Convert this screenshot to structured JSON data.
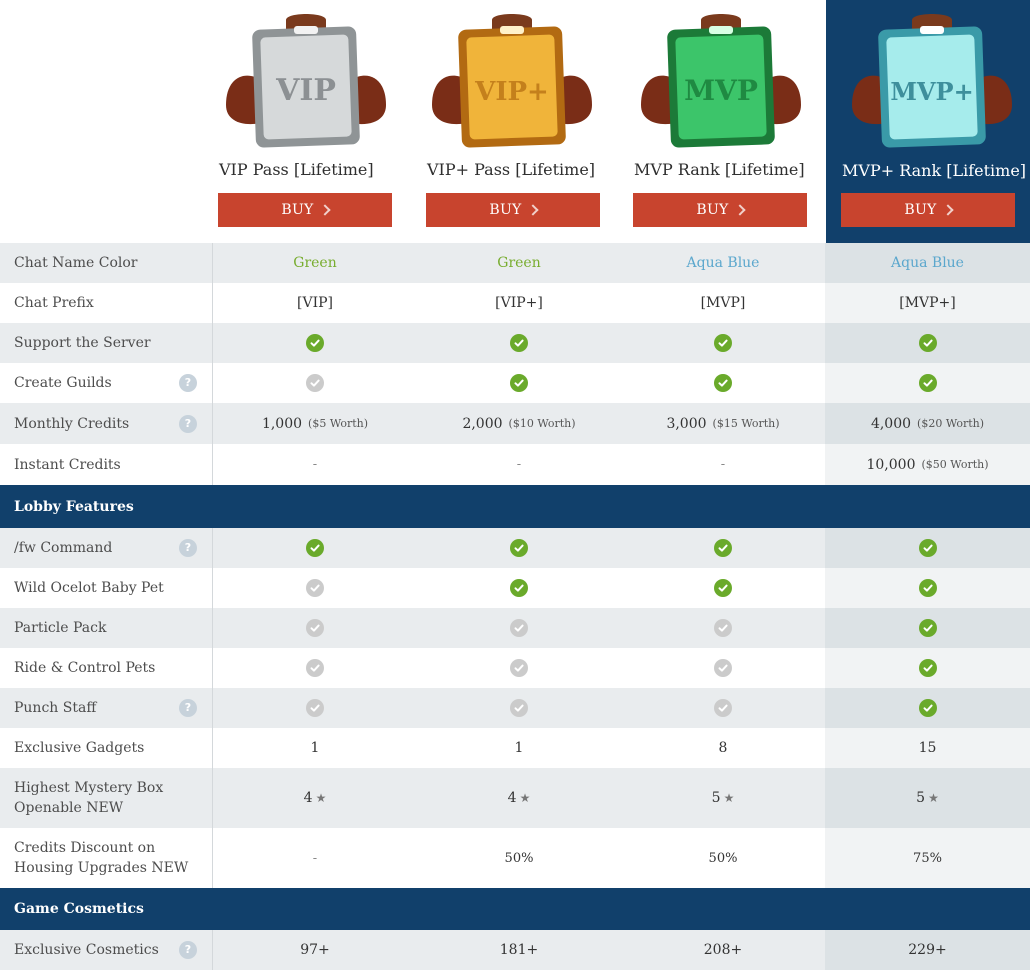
{
  "passes": [
    {
      "name": "VIP Pass [Lifetime]",
      "badge_text": "VIP",
      "buy": "BUY"
    },
    {
      "name": "VIP+ Pass [Lifetime]",
      "badge_text": "VIP+",
      "buy": "BUY"
    },
    {
      "name": "MVP Rank [Lifetime]",
      "badge_text": "MVP",
      "buy": "BUY"
    },
    {
      "name": "MVP+ Rank [Lifetime]",
      "badge_text": "MVP+",
      "buy": "BUY"
    }
  ],
  "colors": {
    "navy": "#11406b",
    "buy_red": "#c8442e",
    "check_green": "#6aaa2b",
    "check_gray": "#cbcbcb",
    "green_text": "#78ad2f",
    "aqua_text": "#5ba7cd",
    "silver": "#b9bcbd",
    "gold": "#e6a52b",
    "emerald": "#2fb35a",
    "ice": "#8fe0e0"
  },
  "rows": {
    "chat_name_color": {
      "label": "Chat Name Color",
      "values": [
        "Green",
        "Green",
        "Aqua Blue",
        "Aqua Blue"
      ]
    },
    "chat_prefix": {
      "label": "Chat Prefix",
      "values": [
        "[VIP]",
        "[VIP+]",
        "[MVP]",
        "[MVP+]"
      ]
    },
    "support_server": {
      "label": "Support the Server",
      "values": [
        true,
        true,
        true,
        true
      ]
    },
    "create_guilds": {
      "label": "Create Guilds",
      "values": [
        false,
        true,
        true,
        true
      ]
    },
    "monthly_credits": {
      "label": "Monthly Credits",
      "values": [
        "1,000",
        "2,000",
        "3,000",
        "4,000"
      ],
      "notes": [
        "($5 Worth)",
        "($10 Worth)",
        "($15 Worth)",
        "($20 Worth)"
      ]
    },
    "instant_credits": {
      "label": "Instant Credits",
      "values": [
        "-",
        "-",
        "-",
        "10,000"
      ],
      "note4": "($50 Worth)"
    }
  },
  "lobby_section": "Lobby Features",
  "lobby": {
    "fw_command": {
      "label": "/fw Command",
      "values": [
        true,
        true,
        true,
        true
      ]
    },
    "ocelot_pet": {
      "label": "Wild Ocelot Baby Pet",
      "values": [
        false,
        true,
        true,
        true
      ]
    },
    "particle_pack": {
      "label": "Particle Pack",
      "values": [
        false,
        false,
        false,
        true
      ]
    },
    "ride_pets": {
      "label": "Ride & Control Pets",
      "values": [
        false,
        false,
        false,
        true
      ]
    },
    "punch_staff": {
      "label": "Punch Staff",
      "values": [
        false,
        false,
        false,
        true
      ]
    },
    "gadgets": {
      "label": "Exclusive Gadgets",
      "values": [
        "1",
        "1",
        "8",
        "15"
      ]
    },
    "mystery_box": {
      "label_line1": "Highest Mystery Box",
      "label_line2": "Openable NEW",
      "values": [
        "4",
        "4",
        "5",
        "5"
      ],
      "star": "★"
    },
    "housing_discount": {
      "label_line1": "Credits Discount on",
      "label_line2": "Housing Upgrades NEW",
      "values": [
        "-",
        "50%",
        "50%",
        "75%"
      ]
    }
  },
  "cosmetics_section": "Game Cosmetics",
  "cosmetics": {
    "exclusive": {
      "label": "Exclusive Cosmetics",
      "values": [
        "97+",
        "181+",
        "208+",
        "229+"
      ]
    }
  },
  "help_mark": "?"
}
